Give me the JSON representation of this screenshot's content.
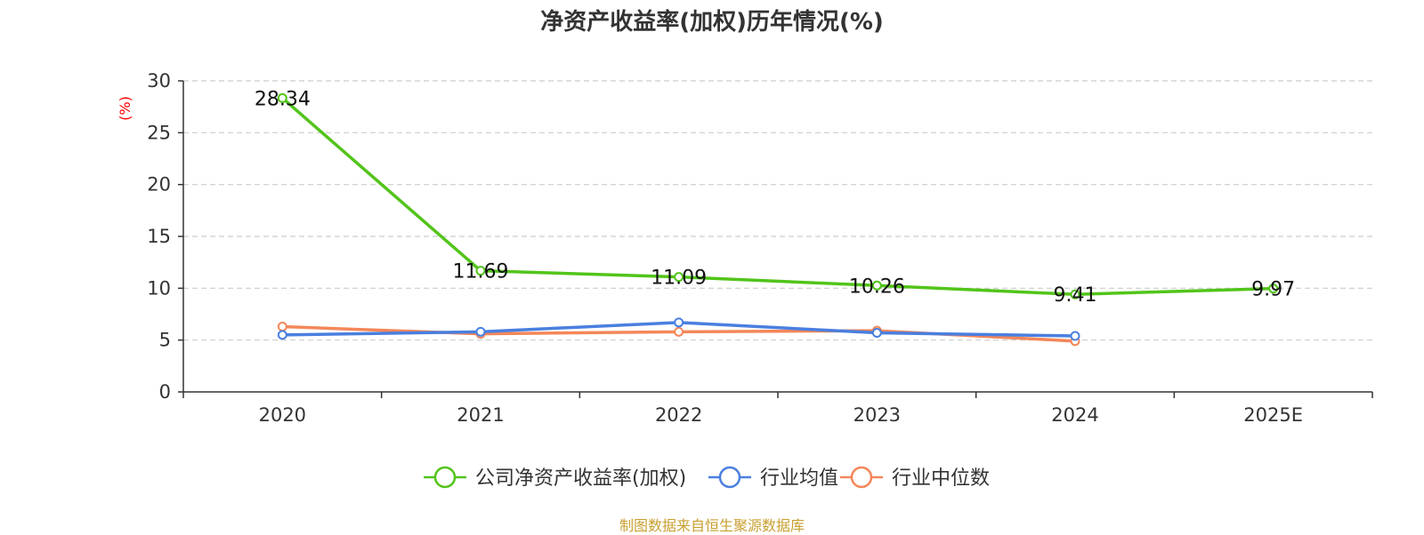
{
  "chart_data": {
    "type": "line",
    "title": "净资产收益率(加权)历年情况(%)",
    "ylabel": "(%)",
    "categories": [
      "2020",
      "2021",
      "2022",
      "2023",
      "2024",
      "2025E"
    ],
    "ylim": [
      0,
      30
    ],
    "yticks": [
      0,
      5,
      10,
      15,
      20,
      25,
      30
    ],
    "grid": true,
    "legend_position": "bottom",
    "series": [
      {
        "name": "公司净资产收益率(加权)",
        "color": "#52c41a",
        "values": [
          28.34,
          11.69,
          11.09,
          10.26,
          9.41,
          9.97
        ],
        "labels": [
          "28.34",
          "11.69",
          "11.09",
          "10.26",
          "9.41",
          "9.97"
        ]
      },
      {
        "name": "行业均值",
        "color": "#4a7fe0",
        "values": [
          5.5,
          5.8,
          6.7,
          5.7,
          5.4,
          null
        ]
      },
      {
        "name": "行业中位数",
        "color": "#f4875a",
        "values": [
          6.3,
          5.6,
          5.8,
          5.9,
          4.9,
          null
        ]
      }
    ]
  },
  "source_note": "制图数据来自恒生聚源数据库"
}
